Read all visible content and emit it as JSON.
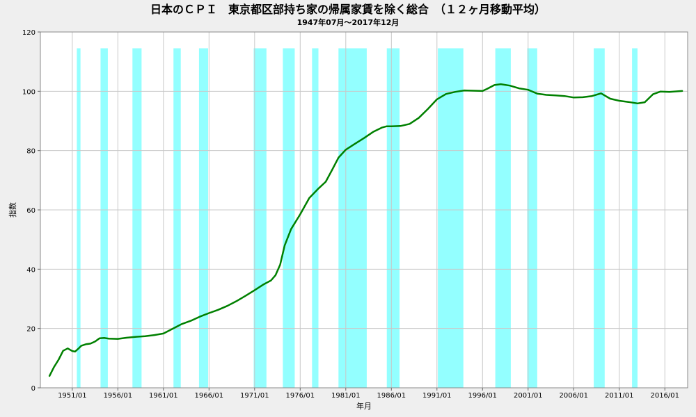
{
  "chart_data": {
    "type": "line",
    "title": "日本のＣＰＩ　東京都区部持ち家の帰属家賃を除く総合　（１２ヶ月移動平均）",
    "subtitle": "1947年07月～2017年12月",
    "xlabel": "年月",
    "ylabel": "指数",
    "ylim": [
      0,
      120
    ],
    "yticks": [
      "0",
      "20",
      "40",
      "60",
      "80",
      "100",
      "120"
    ],
    "xlim": [
      1947.5,
      2018.5
    ],
    "xticks": [
      "1951/01",
      "1956/01",
      "1961/01",
      "1966/01",
      "1971/01",
      "1976/01",
      "1981/01",
      "1986/01",
      "1991/01",
      "1996/01",
      "2001/01",
      "2006/01",
      "2011/01",
      "2016/01"
    ],
    "grid": true,
    "colors": {
      "line": "#008000",
      "band": "#80ffff",
      "plot_bg": "#ffffff",
      "grid": "#c8c8c8"
    },
    "series": [
      {
        "points": [
          [
            1948.5,
            4.0
          ],
          [
            1949.0,
            7.0
          ],
          [
            1949.5,
            9.5
          ],
          [
            1950.0,
            12.5
          ],
          [
            1950.5,
            13.3
          ],
          [
            1951.0,
            12.4
          ],
          [
            1951.3,
            12.2
          ],
          [
            1951.7,
            13.3
          ],
          [
            1952.0,
            14.2
          ],
          [
            1952.5,
            14.7
          ],
          [
            1953.0,
            14.9
          ],
          [
            1953.5,
            15.6
          ],
          [
            1954.0,
            16.7
          ],
          [
            1954.5,
            16.8
          ],
          [
            1955.0,
            16.6
          ],
          [
            1956.0,
            16.5
          ],
          [
            1957.0,
            16.9
          ],
          [
            1958.0,
            17.2
          ],
          [
            1959.0,
            17.4
          ],
          [
            1960.0,
            17.8
          ],
          [
            1961.0,
            18.3
          ],
          [
            1962.0,
            19.9
          ],
          [
            1963.0,
            21.5
          ],
          [
            1964.0,
            22.6
          ],
          [
            1965.0,
            24.0
          ],
          [
            1966.0,
            25.2
          ],
          [
            1967.0,
            26.3
          ],
          [
            1968.0,
            27.6
          ],
          [
            1969.0,
            29.2
          ],
          [
            1970.0,
            31.0
          ],
          [
            1971.0,
            32.9
          ],
          [
            1972.0,
            34.9
          ],
          [
            1972.8,
            36.2
          ],
          [
            1973.3,
            38.0
          ],
          [
            1973.8,
            41.5
          ],
          [
            1974.3,
            48.0
          ],
          [
            1975.0,
            53.5
          ],
          [
            1976.0,
            58.5
          ],
          [
            1977.0,
            64.0
          ],
          [
            1978.0,
            67.2
          ],
          [
            1978.8,
            69.5
          ],
          [
            1979.5,
            73.5
          ],
          [
            1980.2,
            77.6
          ],
          [
            1981.0,
            80.3
          ],
          [
            1982.0,
            82.3
          ],
          [
            1983.0,
            84.2
          ],
          [
            1984.0,
            86.3
          ],
          [
            1985.0,
            87.8
          ],
          [
            1985.5,
            88.2
          ],
          [
            1986.0,
            88.2
          ],
          [
            1987.0,
            88.3
          ],
          [
            1988.0,
            89.0
          ],
          [
            1989.0,
            91.0
          ],
          [
            1990.0,
            94.0
          ],
          [
            1991.0,
            97.3
          ],
          [
            1992.0,
            99.1
          ],
          [
            1993.0,
            99.8
          ],
          [
            1994.0,
            100.3
          ],
          [
            1995.0,
            100.2
          ],
          [
            1996.0,
            100.1
          ],
          [
            1996.5,
            100.8
          ],
          [
            1997.3,
            102.1
          ],
          [
            1998.0,
            102.4
          ],
          [
            1999.0,
            101.9
          ],
          [
            2000.0,
            101.0
          ],
          [
            2001.0,
            100.5
          ],
          [
            2002.0,
            99.2
          ],
          [
            2003.0,
            98.8
          ],
          [
            2004.0,
            98.6
          ],
          [
            2005.0,
            98.4
          ],
          [
            2006.0,
            97.9
          ],
          [
            2007.0,
            98.0
          ],
          [
            2008.0,
            98.4
          ],
          [
            2009.0,
            99.3
          ],
          [
            2010.0,
            97.5
          ],
          [
            2011.0,
            96.8
          ],
          [
            2012.0,
            96.4
          ],
          [
            2013.0,
            95.9
          ],
          [
            2013.8,
            96.3
          ],
          [
            2014.7,
            99.0
          ],
          [
            2015.5,
            99.9
          ],
          [
            2016.5,
            99.8
          ],
          [
            2017.9,
            100.1
          ]
        ]
      }
    ],
    "shaded_bands": [
      [
        1951.5,
        1951.9
      ],
      [
        1954.1,
        1954.9
      ],
      [
        1957.6,
        1958.6
      ],
      [
        1962.1,
        1962.9
      ],
      [
        1964.9,
        1965.9
      ],
      [
        1970.9,
        1972.3
      ],
      [
        1974.1,
        1975.4
      ],
      [
        1977.3,
        1978.0
      ],
      [
        1980.2,
        1983.3
      ],
      [
        1985.5,
        1986.9
      ],
      [
        1991.1,
        1993.9
      ],
      [
        1997.4,
        1999.1
      ],
      [
        2000.9,
        2002.0
      ],
      [
        2008.2,
        2009.4
      ],
      [
        2012.4,
        2013.0
      ]
    ]
  }
}
